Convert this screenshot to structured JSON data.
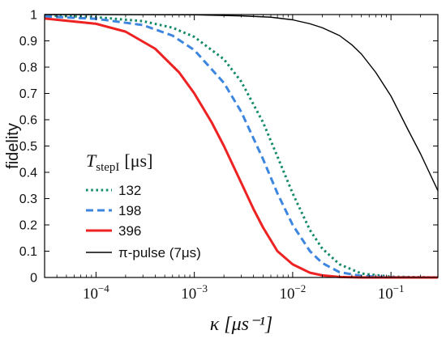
{
  "chart_data": {
    "type": "line",
    "xlabel": "κ [μs⁻¹]",
    "ylabel": "fidelity",
    "xscale": "log",
    "xlim": [
      3e-05,
      0.3
    ],
    "ylim": [
      0,
      1
    ],
    "x_ticks": [
      {
        "value": 0.0001,
        "base": "10",
        "exp": "−4"
      },
      {
        "value": 0.001,
        "base": "10",
        "exp": "−3"
      },
      {
        "value": 0.01,
        "base": "10",
        "exp": "−2"
      },
      {
        "value": 0.1,
        "base": "10",
        "exp": "−1"
      }
    ],
    "y_ticks": [
      {
        "value": 0,
        "label": "0"
      },
      {
        "value": 0.1,
        "label": "0.1"
      },
      {
        "value": 0.2,
        "label": "0.2"
      },
      {
        "value": 0.3,
        "label": "0.3"
      },
      {
        "value": 0.4,
        "label": "0.4"
      },
      {
        "value": 0.5,
        "label": "0.5"
      },
      {
        "value": 0.6,
        "label": "0.6"
      },
      {
        "value": 0.7,
        "label": "0.7"
      },
      {
        "value": 0.8,
        "label": "0.8"
      },
      {
        "value": 0.9,
        "label": "0.9"
      },
      {
        "value": 1,
        "label": "1"
      }
    ],
    "legend": {
      "placement": "lower-left",
      "title_symbol": "T",
      "title_subscript": "stepI",
      "title_unit": "[μs]"
    },
    "series": [
      {
        "name": "132",
        "color": "#138a6a",
        "style": "dotted",
        "x": [
          3e-05,
          0.0001,
          0.0003,
          0.0006,
          0.001,
          0.002,
          0.003,
          0.005,
          0.007,
          0.01,
          0.015,
          0.02,
          0.03,
          0.05,
          0.1,
          0.3
        ],
        "y": [
          0.997,
          0.99,
          0.975,
          0.95,
          0.915,
          0.83,
          0.745,
          0.59,
          0.46,
          0.32,
          0.18,
          0.11,
          0.05,
          0.015,
          0.003,
          0.0
        ]
      },
      {
        "name": "198",
        "color": "#3d86e0",
        "style": "dashed",
        "x": [
          3e-05,
          0.0001,
          0.0003,
          0.0006,
          0.001,
          0.002,
          0.003,
          0.005,
          0.007,
          0.01,
          0.015,
          0.02,
          0.03,
          0.05,
          0.1,
          0.3
        ],
        "y": [
          0.993,
          0.984,
          0.96,
          0.92,
          0.865,
          0.74,
          0.63,
          0.45,
          0.32,
          0.2,
          0.1,
          0.055,
          0.02,
          0.006,
          0.001,
          0.0
        ]
      },
      {
        "name": "396",
        "color": "#ee2222",
        "style": "solid",
        "x": [
          3e-05,
          0.0001,
          0.0002,
          0.0004,
          0.0007,
          0.001,
          0.0015,
          0.002,
          0.003,
          0.004,
          0.005,
          0.007,
          0.01,
          0.015,
          0.02,
          0.03,
          0.05,
          0.1,
          0.3
        ],
        "y": [
          0.985,
          0.965,
          0.935,
          0.87,
          0.78,
          0.7,
          0.59,
          0.5,
          0.36,
          0.26,
          0.19,
          0.1,
          0.05,
          0.018,
          0.008,
          0.002,
          0.0,
          0.0,
          0.0
        ]
      },
      {
        "name": "π-pulse (7μs)",
        "color": "#000000",
        "style": "solid-thin",
        "x": [
          3e-05,
          0.0001,
          0.001,
          0.003,
          0.006,
          0.01,
          0.015,
          0.02,
          0.03,
          0.04,
          0.05,
          0.07,
          0.1,
          0.15,
          0.2,
          0.3
        ],
        "y": [
          1.0,
          1.0,
          0.999,
          0.995,
          0.99,
          0.98,
          0.965,
          0.95,
          0.92,
          0.885,
          0.85,
          0.78,
          0.69,
          0.56,
          0.47,
          0.33
        ]
      }
    ]
  }
}
